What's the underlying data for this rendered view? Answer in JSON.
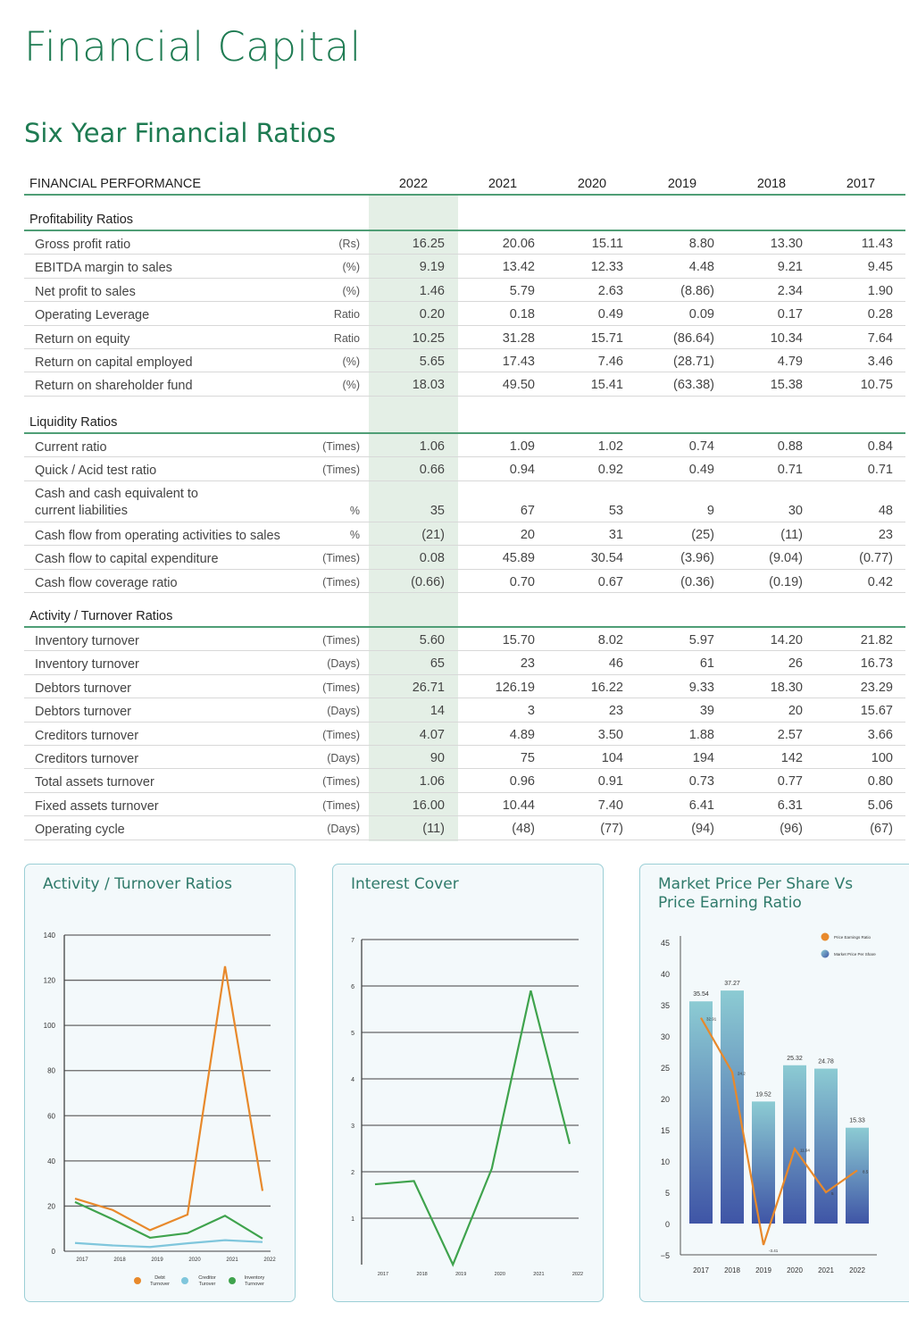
{
  "page_title": "Financial Capital",
  "section_title": "Six Year Financial Ratios",
  "table": {
    "header_label": "FINANCIAL PERFORMANCE",
    "years": [
      "2022",
      "2021",
      "2020",
      "2019",
      "2018",
      "2017"
    ],
    "sections": [
      {
        "title": "Profitability Ratios",
        "rows": [
          {
            "label": "Gross profit ratio",
            "unit": "(Rs)",
            "values": [
              "16.25",
              "20.06",
              "15.11",
              "8.80",
              "13.30",
              "11.43"
            ]
          },
          {
            "label": "EBITDA margin to sales",
            "unit": "(%)",
            "values": [
              "9.19",
              "13.42",
              "12.33",
              "4.48",
              "9.21",
              "9.45"
            ]
          },
          {
            "label": "Net profit to sales",
            "unit": "(%)",
            "values": [
              "1.46",
              "5.79",
              "2.63",
              "(8.86)",
              "2.34",
              "1.90"
            ]
          },
          {
            "label": "Operating Leverage",
            "unit": "Ratio",
            "values": [
              "0.20",
              "0.18",
              "0.49",
              "0.09",
              "0.17",
              "0.28"
            ]
          },
          {
            "label": "Return on equity",
            "unit": "Ratio",
            "values": [
              "10.25",
              "31.28",
              "15.71",
              "(86.64)",
              "10.34",
              "7.64"
            ]
          },
          {
            "label": "Return on capital employed",
            "unit": "(%)",
            "values": [
              "5.65",
              "17.43",
              "7.46",
              "(28.71)",
              "4.79",
              "3.46"
            ]
          },
          {
            "label": "Return on shareholder fund",
            "unit": "(%)",
            "values": [
              "18.03",
              "49.50",
              "15.41",
              "(63.38)",
              "15.38",
              "10.75"
            ]
          }
        ]
      },
      {
        "title": "Liquidity Ratios",
        "rows": [
          {
            "label": "Current ratio",
            "unit": "(Times)",
            "values": [
              "1.06",
              "1.09",
              "1.02",
              "0.74",
              "0.88",
              "0.84"
            ]
          },
          {
            "label": "Quick / Acid test ratio",
            "unit": "(Times)",
            "values": [
              "0.66",
              "0.94",
              "0.92",
              "0.49",
              "0.71",
              "0.71"
            ]
          },
          {
            "label": "Cash and cash equivalent to current liabilities",
            "unit": "%",
            "values": [
              "35",
              "67",
              "53",
              "9",
              "30",
              "48"
            ],
            "two_line": true
          },
          {
            "label": "Cash flow from operating activities to sales",
            "unit": "%",
            "values": [
              "(21)",
              "20",
              "31",
              "(25)",
              "(11)",
              "23"
            ]
          },
          {
            "label": "Cash flow to capital expenditure",
            "unit": "(Times)",
            "values": [
              "0.08",
              "45.89",
              "30.54",
              "(3.96)",
              "(9.04)",
              "(0.77)"
            ]
          },
          {
            "label": "Cash flow coverage ratio",
            "unit": "(Times)",
            "values": [
              "(0.66)",
              "0.70",
              "0.67",
              "(0.36)",
              "(0.19)",
              "0.42"
            ]
          }
        ]
      },
      {
        "title": "Activity / Turnover Ratios",
        "rows": [
          {
            "label": "Inventory turnover",
            "unit": "(Times)",
            "values": [
              "5.60",
              "15.70",
              "8.02",
              "5.97",
              "14.20",
              "21.82"
            ]
          },
          {
            "label": "Inventory turnover",
            "unit": "(Days)",
            "values": [
              "65",
              "23",
              "46",
              "61",
              "26",
              "16.73"
            ]
          },
          {
            "label": "Debtors turnover",
            "unit": "(Times)",
            "values": [
              "26.71",
              "126.19",
              "16.22",
              "9.33",
              "18.30",
              "23.29"
            ]
          },
          {
            "label": "Debtors turnover",
            "unit": "(Days)",
            "values": [
              "14",
              "3",
              "23",
              "39",
              "20",
              "15.67"
            ]
          },
          {
            "label": "Creditors turnover",
            "unit": "(Times)",
            "values": [
              "4.07",
              "4.89",
              "3.50",
              "1.88",
              "2.57",
              "3.66"
            ]
          },
          {
            "label": "Creditors turnover",
            "unit": "(Days)",
            "values": [
              "90",
              "75",
              "104",
              "194",
              "142",
              "100"
            ]
          },
          {
            "label": "Total assets turnover",
            "unit": "(Times)",
            "values": [
              "1.06",
              "0.96",
              "0.91",
              "0.73",
              "0.77",
              "0.80"
            ]
          },
          {
            "label": "Fixed assets turnover",
            "unit": "(Times)",
            "values": [
              "16.00",
              "10.44",
              "7.40",
              "6.41",
              "6.31",
              "5.06"
            ]
          },
          {
            "label": "Operating cycle",
            "unit": "(Days)",
            "values": [
              "(11)",
              "(48)",
              "(77)",
              "(94)",
              "(96)",
              "(67)"
            ]
          }
        ]
      }
    ]
  },
  "chart_data": [
    {
      "type": "line",
      "title": "Activity / Turnover Ratios",
      "x": [
        "2017",
        "2018",
        "2019",
        "2020",
        "2021",
        "2022"
      ],
      "ylim": [
        0,
        140
      ],
      "yticks": [
        0,
        20,
        40,
        60,
        80,
        100,
        120,
        140
      ],
      "grid": true,
      "legend_position": "bottom",
      "series": [
        {
          "name": "Debt Turnover",
          "color": "#e8892b",
          "values": [
            23.29,
            18.3,
            9.33,
            16.22,
            126.19,
            26.71
          ]
        },
        {
          "name": "Creditor Turover",
          "color": "#7fc6dc",
          "values": [
            3.66,
            2.57,
            1.88,
            3.5,
            4.89,
            4.07
          ]
        },
        {
          "name": "Inventory Turnover",
          "color": "#3fa34d",
          "values": [
            21.82,
            14.2,
            5.97,
            8.02,
            15.7,
            5.6
          ]
        }
      ]
    },
    {
      "type": "line",
      "title": "Interest Cover",
      "x": [
        "2017",
        "2018",
        "2019",
        "2020",
        "2021",
        "2022"
      ],
      "ylim": [
        0,
        7
      ],
      "yticks": [
        1,
        2,
        3,
        4,
        5,
        6,
        7
      ],
      "grid": true,
      "series": [
        {
          "color": "#3fa34d",
          "values": [
            1.73,
            1.8,
            0,
            2.07,
            5.9,
            2.6
          ]
        }
      ]
    },
    {
      "type": "bar+line",
      "title": "Market Price Per Share Vs Price Earning Ratio",
      "x": [
        "2017",
        "2018",
        "2019",
        "2020",
        "2021",
        "2022"
      ],
      "ylim": [
        -5,
        45
      ],
      "yticks": [
        -5,
        0,
        5,
        10,
        15,
        20,
        25,
        30,
        35,
        40,
        45
      ],
      "legend_position": "top-right",
      "bars": {
        "name": "Market Price Per Share",
        "color_top": "#8ccbd3",
        "color_bottom": "#3f55a6",
        "values": [
          35.54,
          37.27,
          19.52,
          25.32,
          24.78,
          15.33
        ],
        "labels": [
          "35.54",
          "37.27",
          "19.52",
          "25.32",
          "24.78",
          "15.33"
        ]
      },
      "line": {
        "name": "Price Earnings Ratio",
        "color": "#e8892b",
        "values": [
          32.91,
          24.2,
          -3.41,
          11.94,
          5,
          8.5
        ],
        "labels": [
          "32.91",
          "24.2",
          "-3.41",
          "11.94",
          "5",
          "8.5"
        ]
      }
    }
  ]
}
